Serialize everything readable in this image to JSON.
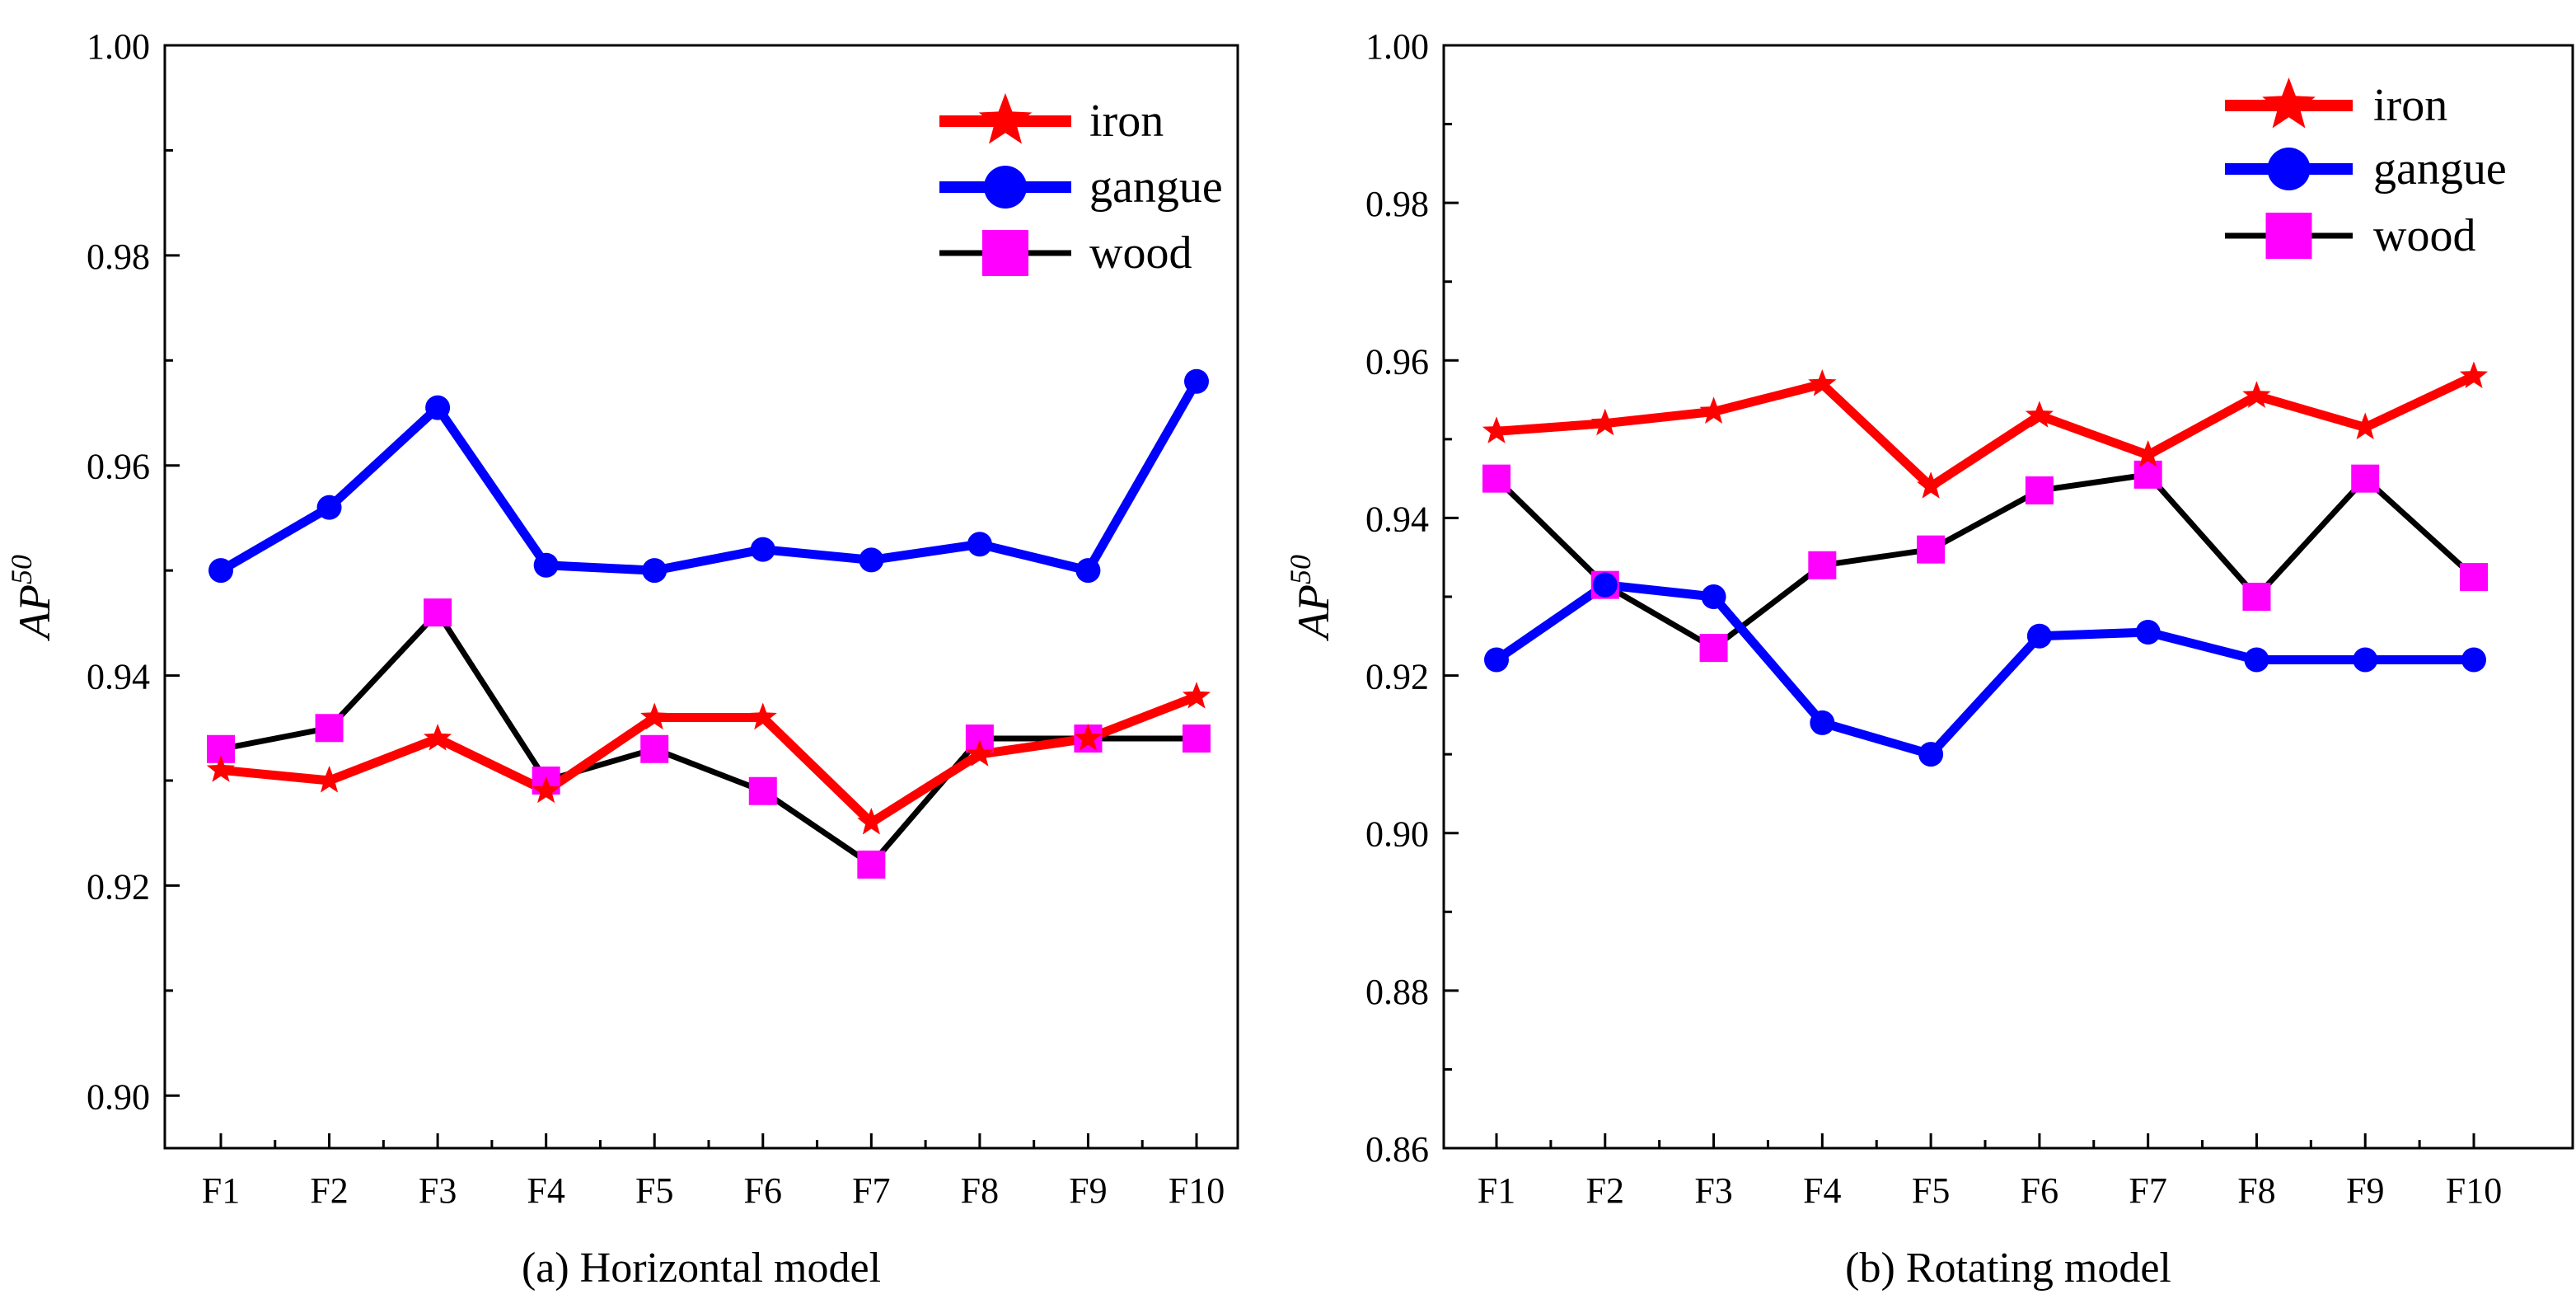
{
  "chart_data": [
    {
      "type": "line",
      "title": "(a) Horizontal model",
      "xlabel": "",
      "ylabel": "AP",
      "ylabel_sup": "50",
      "categories": [
        "F1",
        "F2",
        "F3",
        "F4",
        "F5",
        "F6",
        "F7",
        "F8",
        "F9",
        "F10"
      ],
      "ylim": [
        0.895,
        1.0
      ],
      "yticks": [
        0.9,
        0.92,
        0.94,
        0.96,
        0.98,
        1.0
      ],
      "ytick_labels": [
        "0.90",
        "0.92",
        "0.94",
        "0.96",
        "0.98",
        "1.00"
      ],
      "legend_position": "top-right",
      "series": [
        {
          "name": "iron",
          "color": "#ff0000",
          "marker": "star",
          "values": [
            0.931,
            0.93,
            0.934,
            0.929,
            0.936,
            0.936,
            0.926,
            0.9325,
            0.934,
            0.938
          ]
        },
        {
          "name": "gangue",
          "color": "#0000ff",
          "marker": "circle",
          "values": [
            0.95,
            0.956,
            0.9655,
            0.9505,
            0.95,
            0.952,
            0.951,
            0.9525,
            0.95,
            0.968
          ]
        },
        {
          "name": "wood",
          "color": "#000000",
          "marker": "square",
          "marker_color": "#ff00ff",
          "values": [
            0.933,
            0.935,
            0.946,
            0.93,
            0.933,
            0.929,
            0.922,
            0.934,
            0.934,
            0.934
          ]
        }
      ]
    },
    {
      "type": "line",
      "title": "(b) Rotating model",
      "xlabel": "",
      "ylabel": "AP",
      "ylabel_sup": "50",
      "categories": [
        "F1",
        "F2",
        "F3",
        "F4",
        "F5",
        "F6",
        "F7",
        "F8",
        "F9",
        "F10"
      ],
      "ylim": [
        0.86,
        1.0
      ],
      "yticks": [
        0.86,
        0.88,
        0.9,
        0.92,
        0.94,
        0.96,
        0.98,
        1.0
      ],
      "ytick_labels": [
        "0.86",
        "0.88",
        "0.90",
        "0.92",
        "0.94",
        "0.96",
        "0.98",
        "1.00"
      ],
      "legend_position": "top-right",
      "series": [
        {
          "name": "iron",
          "color": "#ff0000",
          "marker": "star",
          "values": [
            0.951,
            0.952,
            0.9535,
            0.957,
            0.944,
            0.953,
            0.948,
            0.9555,
            0.9515,
            0.958
          ]
        },
        {
          "name": "gangue",
          "color": "#0000ff",
          "marker": "circle",
          "values": [
            0.922,
            0.9315,
            0.93,
            0.914,
            0.91,
            0.925,
            0.9255,
            0.922,
            0.922,
            0.922
          ]
        },
        {
          "name": "wood",
          "color": "#000000",
          "marker": "square",
          "marker_color": "#ff00ff",
          "values": [
            0.945,
            0.9315,
            0.9235,
            0.934,
            0.936,
            0.9435,
            0.9455,
            0.93,
            0.945,
            0.9325
          ]
        }
      ]
    }
  ]
}
